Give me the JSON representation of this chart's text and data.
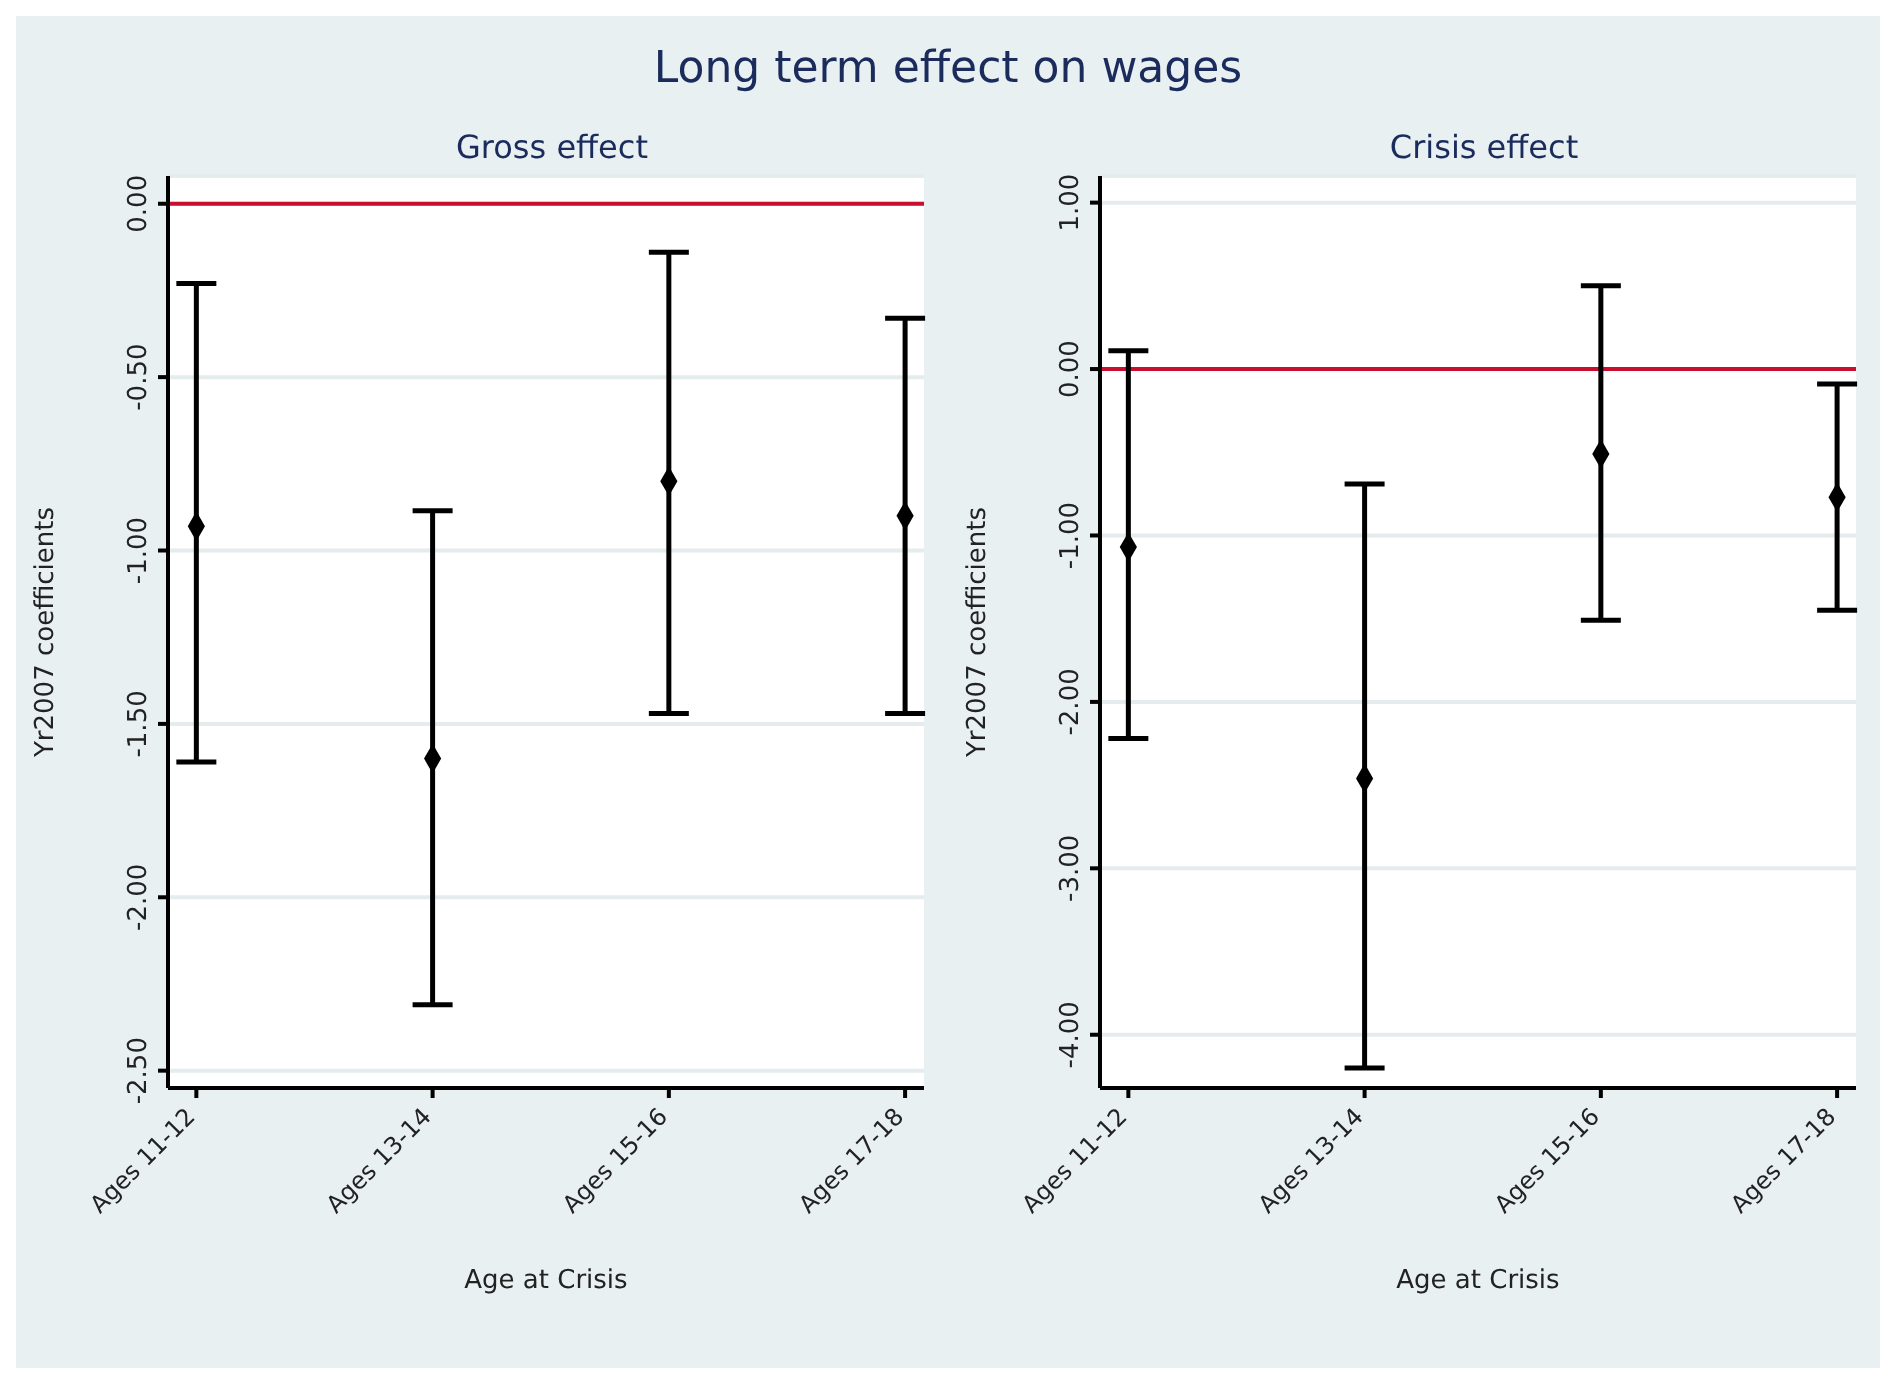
{
  "chart_data": [
    {
      "type": "scatter",
      "title": "Long term effect on wages",
      "subtitle": "Gross effect",
      "xlabel": "Age at Crisis",
      "ylabel": "Yr2007 coefficients",
      "categories": [
        "Ages 11-12",
        "Ages 13-14",
        "Ages 15-16",
        "Ages 17-18"
      ],
      "values": [
        -0.93,
        -1.6,
        -0.8,
        -0.9
      ],
      "errors": [
        [
          -1.61,
          -0.23
        ],
        [
          -2.31,
          -0.885
        ],
        [
          -1.47,
          -0.14
        ],
        [
          -1.47,
          -0.33
        ]
      ],
      "color": "#000000",
      "marker": "diamond",
      "ylim": [
        -2.55,
        0.08
      ],
      "yticks": [
        {
          "value": -2.5,
          "label": "-2.50"
        },
        {
          "value": -2,
          "label": "-2.00"
        },
        {
          "value": -1.5,
          "label": "-1.50"
        },
        {
          "value": -1,
          "label": "-1.00"
        },
        {
          "value": -0.5,
          "label": "-0.50"
        },
        {
          "value": 0,
          "label": "0.00"
        }
      ],
      "grid": "y",
      "ref_lines": [
        {
          "axis": "y",
          "value": 0,
          "color": "#c8102e"
        }
      ]
    },
    {
      "type": "scatter",
      "subtitle": "Crisis effect",
      "xlabel": "Age at Crisis",
      "ylabel": "Yr2007 coefficients",
      "categories": [
        "Ages 11-12",
        "Ages 13-14",
        "Ages 15-16",
        "Ages 17-18"
      ],
      "values": [
        -1.07,
        -2.46,
        -0.51,
        -0.77
      ],
      "errors": [
        [
          -2.22,
          0.11
        ],
        [
          -4.2,
          -0.69
        ],
        [
          -1.51,
          0.5
        ],
        [
          -1.45,
          -0.09
        ]
      ],
      "color": "#000000",
      "marker": "diamond",
      "ylim": [
        -4.32,
        1.16
      ],
      "yticks": [
        {
          "value": -4,
          "label": "-4.00"
        },
        {
          "value": -3,
          "label": "-3.00"
        },
        {
          "value": -2,
          "label": "-2.00"
        },
        {
          "value": -1,
          "label": "-1.00"
        },
        {
          "value": 0,
          "label": "0.00"
        },
        {
          "value": 1,
          "label": "1.00"
        }
      ],
      "grid": "y",
      "ref_lines": [
        {
          "axis": "y",
          "value": 0,
          "color": "#c8102e"
        }
      ]
    }
  ]
}
